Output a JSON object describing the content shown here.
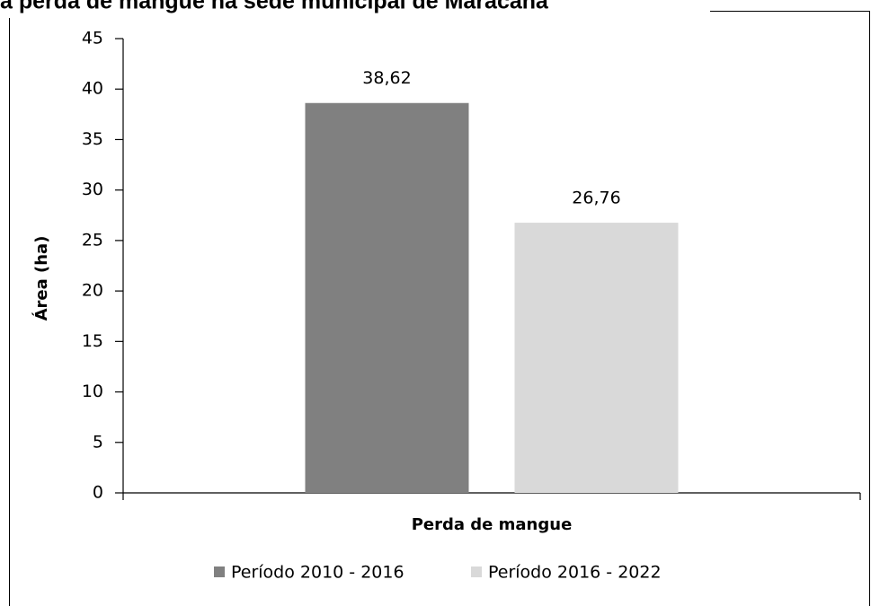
{
  "chart_data": {
    "type": "bar",
    "title": "a perda de mangue na sede municipal de Maracanã",
    "categories": [
      "Perda de mangue"
    ],
    "y_label": "Área (ha)",
    "series": [
      {
        "name": "Período 2010 - 2016",
        "color": "#808080",
        "values": [
          38.62
        ],
        "value_labels": [
          "38,62"
        ]
      },
      {
        "name": "Período 2016 - 2022",
        "color": "#d9d9d9",
        "values": [
          26.76
        ],
        "value_labels": [
          "26,76"
        ]
      }
    ],
    "ylim": [
      0,
      45
    ],
    "yticks": [
      0,
      5,
      10,
      15,
      20,
      25,
      30,
      35,
      40,
      45
    ],
    "grid": false,
    "legend": "bottom"
  }
}
